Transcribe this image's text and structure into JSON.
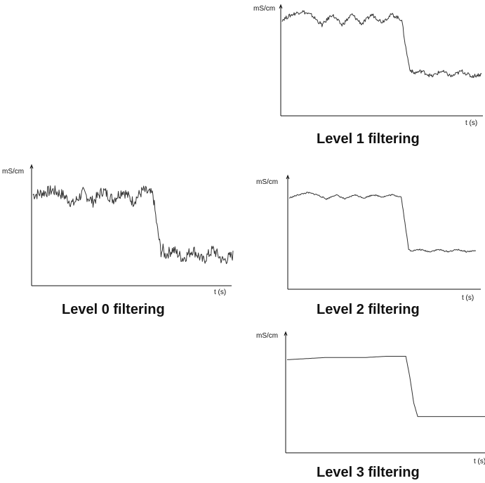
{
  "chart_data": [
    {
      "type": "line",
      "title": "Level 0 filtering",
      "ylabel": "mS/cm",
      "xlabel": "t (s)",
      "noise": "high",
      "x": [
        0,
        0.05,
        0.1,
        0.15,
        0.2,
        0.25,
        0.3,
        0.35,
        0.4,
        0.45,
        0.5,
        0.55,
        0.6,
        0.62,
        0.64,
        0.65,
        0.66,
        0.7,
        0.75,
        0.8,
        0.85,
        0.9,
        0.95,
        1.0
      ],
      "y": [
        0.78,
        0.8,
        0.82,
        0.78,
        0.7,
        0.8,
        0.72,
        0.82,
        0.74,
        0.82,
        0.72,
        0.82,
        0.78,
        0.5,
        0.28,
        0.3,
        0.25,
        0.3,
        0.22,
        0.3,
        0.2,
        0.3,
        0.2,
        0.25
      ],
      "ylim": [
        0,
        1
      ],
      "xlim": [
        0,
        1
      ]
    },
    {
      "type": "line",
      "title": "Level 1 filtering",
      "ylabel": "mS/cm",
      "xlabel": "t (s)",
      "noise": "medium",
      "x": [
        0,
        0.05,
        0.1,
        0.15,
        0.2,
        0.25,
        0.3,
        0.35,
        0.4,
        0.45,
        0.5,
        0.55,
        0.6,
        0.62,
        0.64,
        0.65,
        0.66,
        0.7,
        0.75,
        0.8,
        0.85,
        0.9,
        0.95,
        1.0
      ],
      "y": [
        0.88,
        0.93,
        0.96,
        0.92,
        0.83,
        0.93,
        0.83,
        0.93,
        0.84,
        0.93,
        0.86,
        0.93,
        0.88,
        0.62,
        0.42,
        0.4,
        0.38,
        0.4,
        0.35,
        0.4,
        0.35,
        0.4,
        0.35,
        0.37
      ],
      "ylim": [
        0,
        1
      ],
      "xlim": [
        0,
        1
      ]
    },
    {
      "type": "line",
      "title": "Level 2 filtering",
      "ylabel": "mS/cm",
      "xlabel": "t (s)",
      "noise": "low",
      "x": [
        0,
        0.05,
        0.1,
        0.15,
        0.2,
        0.25,
        0.3,
        0.35,
        0.4,
        0.45,
        0.5,
        0.55,
        0.6,
        0.62,
        0.64,
        0.65,
        0.66,
        0.7,
        0.75,
        0.8,
        0.85,
        0.9,
        0.95,
        1.0
      ],
      "y": [
        0.83,
        0.86,
        0.88,
        0.86,
        0.82,
        0.86,
        0.82,
        0.86,
        0.83,
        0.86,
        0.84,
        0.86,
        0.84,
        0.6,
        0.35,
        0.34,
        0.34,
        0.35,
        0.33,
        0.35,
        0.33,
        0.35,
        0.33,
        0.34
      ],
      "ylim": [
        0,
        1
      ],
      "xlim": [
        0,
        1
      ]
    },
    {
      "type": "line",
      "title": "Level 3 filtering",
      "ylabel": "mS/cm",
      "xlabel": "t (s)",
      "noise": "none",
      "x": [
        0,
        0.1,
        0.2,
        0.3,
        0.4,
        0.5,
        0.6,
        0.62,
        0.64,
        0.66,
        0.68,
        0.7,
        0.8,
        0.9,
        1.0
      ],
      "y": [
        0.8,
        0.81,
        0.82,
        0.82,
        0.82,
        0.83,
        0.83,
        0.65,
        0.42,
        0.3,
        0.3,
        0.3,
        0.3,
        0.3,
        0.3
      ],
      "ylim": [
        0,
        1
      ],
      "xlim": [
        0,
        1
      ]
    }
  ]
}
